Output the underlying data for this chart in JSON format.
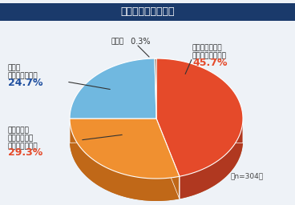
{
  "title": "業務での英語の利用",
  "title_bg": "#1a3a6b",
  "title_fg": "#ffffff",
  "slices": [
    {
      "label": "英語を使用する\n部署・部門がある",
      "value": 45.7,
      "color": "#e54a2a",
      "side_color": "#b03820",
      "pct_color": "#e54a2a"
    },
    {
      "label": "特定部署・\n部門はないが\n英語使用はある",
      "value": 29.3,
      "color": "#f09030",
      "side_color": "#c06818",
      "pct_color": "#e54a2a"
    },
    {
      "label": "英語は\n一切使用しない",
      "value": 24.7,
      "color": "#70b8e0",
      "side_color": "#4888b0",
      "pct_color": "#2050a0"
    },
    {
      "label": "無回答",
      "value": 0.3,
      "color": "#603820",
      "side_color": "#402010",
      "pct_color": "#333333"
    }
  ],
  "n_label": "（n=304）",
  "bg_color": "#eef2f7",
  "base_ellipse_color": "#c07028"
}
